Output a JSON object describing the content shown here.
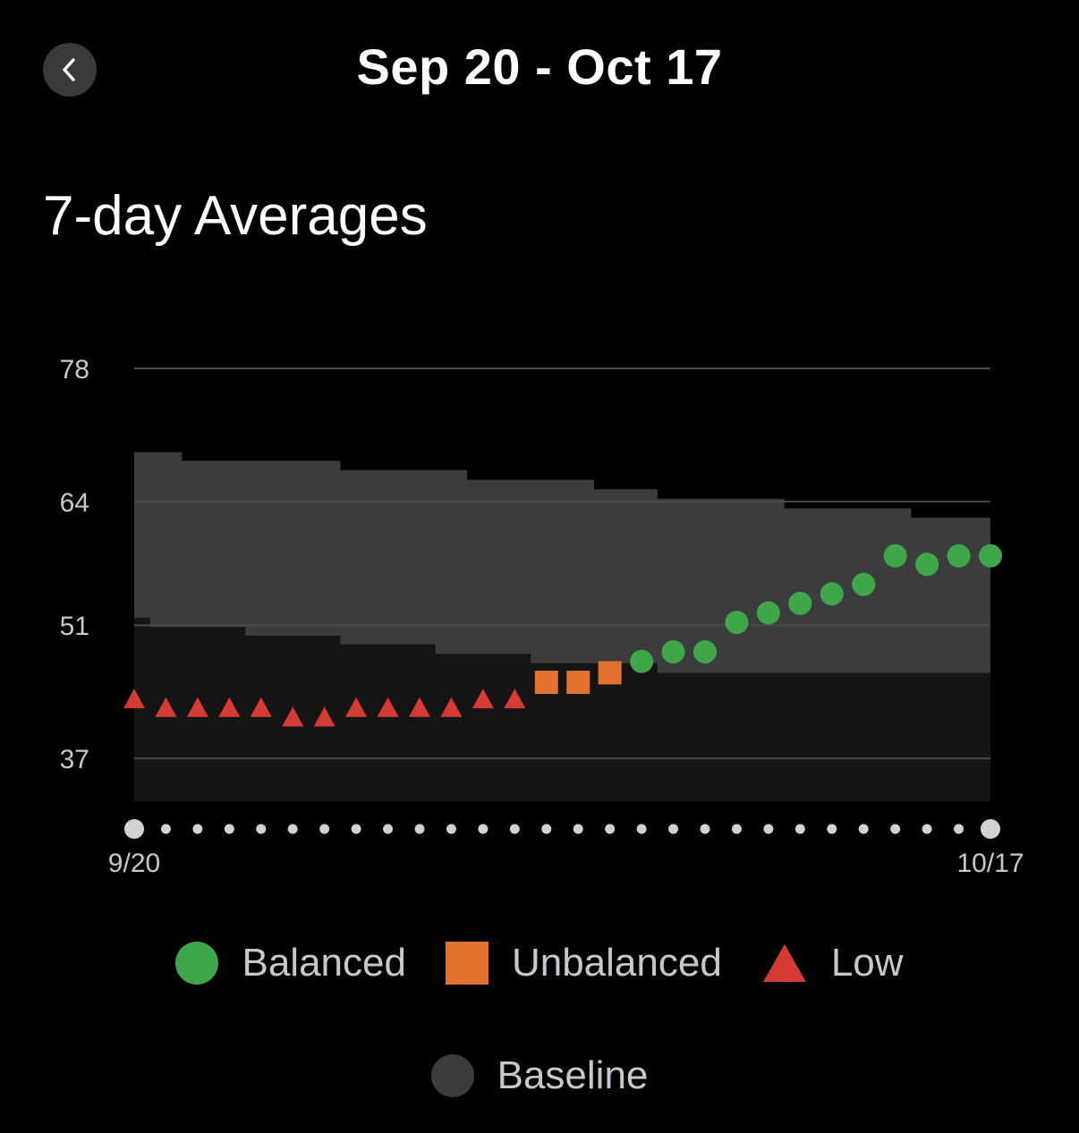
{
  "header": {
    "title": "Sep 20 - Oct 17",
    "back_icon": "chevron-left-icon"
  },
  "section": {
    "title": "7-day Averages"
  },
  "colors": {
    "balanced": "#3fa64a",
    "unbalanced": "#e2722d",
    "low": "#d63b33",
    "baseline_band": "#3c3c3e",
    "below_band": "#141414",
    "grid": "#4a4a4a",
    "axis_text": "#c7c7cc",
    "date_dot": "#d1d1d6"
  },
  "chart_data": {
    "type": "scatter",
    "title": "7-day Averages",
    "x_start_label": "9/20",
    "x_end_label": "10/17",
    "x": [
      "9/20",
      "9/21",
      "9/22",
      "9/23",
      "9/24",
      "9/25",
      "9/26",
      "9/27",
      "9/28",
      "9/29",
      "9/30",
      "10/1",
      "10/2",
      "10/3",
      "10/4",
      "10/5",
      "10/6",
      "10/7",
      "10/8",
      "10/9",
      "10/10",
      "10/11",
      "10/12",
      "10/13",
      "10/14",
      "10/15",
      "10/16",
      "10/17"
    ],
    "y_ticks": [
      37,
      51,
      64,
      78
    ],
    "ylim": [
      32.5,
      78
    ],
    "grid": true,
    "values": [
      43.2,
      42.3,
      42.3,
      42.3,
      42.3,
      41.3,
      41.3,
      42.3,
      42.3,
      42.3,
      42.3,
      43.2,
      43.2,
      45.0,
      45.0,
      46.0,
      47.2,
      48.2,
      48.2,
      51.3,
      52.3,
      53.3,
      54.3,
      55.3,
      58.3,
      57.4,
      58.3,
      58.3
    ],
    "status": [
      "low",
      "low",
      "low",
      "low",
      "low",
      "low",
      "low",
      "low",
      "low",
      "low",
      "low",
      "low",
      "low",
      "unbalanced",
      "unbalanced",
      "unbalanced",
      "balanced",
      "balanced",
      "balanced",
      "balanced",
      "balanced",
      "balanced",
      "balanced",
      "balanced",
      "balanced",
      "balanced",
      "balanced",
      "balanced"
    ],
    "baseline_upper": [
      69.2,
      69.2,
      68.3,
      68.3,
      68.3,
      68.3,
      68.3,
      67.3,
      67.3,
      67.3,
      67.3,
      66.3,
      66.3,
      66.3,
      66.3,
      65.3,
      65.3,
      64.3,
      64.3,
      64.3,
      64.3,
      63.3,
      63.3,
      63.3,
      63.3,
      62.3,
      62.3,
      62.3
    ],
    "baseline_lower": [
      51.8,
      50.8,
      50.8,
      50.8,
      49.9,
      49.9,
      49.9,
      49.0,
      49.0,
      49.0,
      48.0,
      48.0,
      48.0,
      47.0,
      47.0,
      47.0,
      47.0,
      46.0,
      46.0,
      46.0,
      46.0,
      46.0,
      46.0,
      46.0,
      46.0,
      46.0,
      46.0,
      46.0
    ],
    "legend": [
      {
        "name": "Balanced",
        "shape": "circle",
        "color": "#3fa64a"
      },
      {
        "name": "Unbalanced",
        "shape": "square",
        "color": "#e2722d"
      },
      {
        "name": "Low",
        "shape": "triangle",
        "color": "#d63b33"
      },
      {
        "name": "Baseline",
        "shape": "circle",
        "color": "#3c3c3e"
      }
    ]
  }
}
